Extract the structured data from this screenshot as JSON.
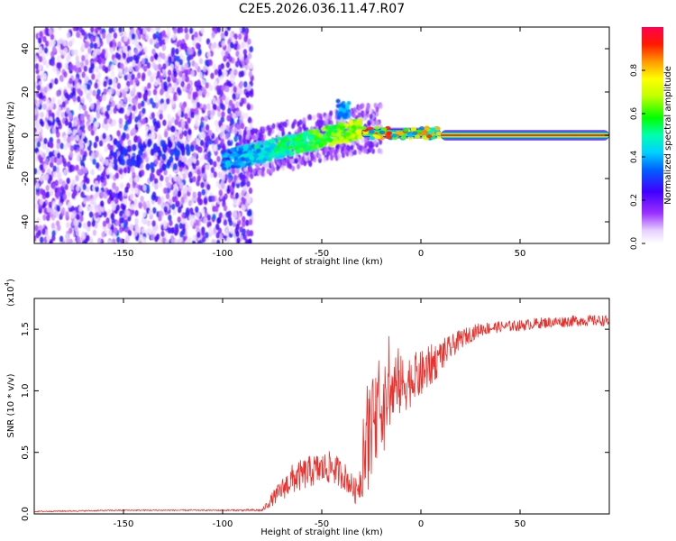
{
  "title": "C2E5.2026.036.11.47.R07",
  "chart_data": [
    {
      "type": "heatmap",
      "name": "spectrogram",
      "xlabel": "Height of straight line (km)",
      "ylabel": "Frequency (Hz)",
      "xlim": [
        -195,
        95
      ],
      "ylim": [
        -50,
        50
      ],
      "xticks": [
        -150,
        -100,
        -50,
        0,
        50
      ],
      "yticks": [
        -40,
        -20,
        0,
        20,
        40
      ],
      "xtick_labels": [
        "-150",
        "-100",
        "-50",
        "0",
        "50"
      ],
      "ytick_labels": [
        "-40",
        "-20",
        "0",
        "20",
        "40"
      ],
      "colorbar": {
        "label": "Normalized spectral amplitude",
        "range": [
          0,
          1
        ],
        "ticks": [
          0.0,
          0.2,
          0.4,
          0.6,
          0.8
        ],
        "tick_labels": [
          "0.0",
          "0.2",
          "0.4",
          "0.6",
          "0.8"
        ]
      },
      "features": [
        {
          "label": "noise",
          "x_range": [
            -195,
            -85
          ],
          "freq_range": [
            -50,
            50
          ],
          "amplitude": 0.1
        },
        {
          "label": "transition",
          "x_range": [
            -100,
            -30
          ],
          "freq_start": -12,
          "freq_end": 3,
          "amplitude": 0.4
        },
        {
          "label": "tone",
          "x_range": [
            -30,
            10
          ],
          "freq": 1,
          "amplitude": 0.9
        },
        {
          "label": "tone",
          "x_range": [
            10,
            95
          ],
          "freq": 0,
          "amplitude": 0.95
        }
      ]
    },
    {
      "type": "line",
      "name": "snr",
      "xlabel": "Height of straight line (km)",
      "ylabel": "SNR (10 * v/v)",
      "y_multiplier": "(x10",
      "y_multiplier_exp": "4",
      "y_multiplier_close": ")",
      "xlim": [
        -195,
        95
      ],
      "ylim": [
        0,
        1.75
      ],
      "xticks": [
        -150,
        -100,
        -50,
        0,
        50
      ],
      "yticks": [
        0.0,
        0.5,
        1.0,
        1.5
      ],
      "xtick_labels": [
        "-150",
        "-100",
        "-50",
        "0",
        "50"
      ],
      "ytick_labels": [
        "0.0",
        "0.5",
        "1.0",
        "1.5"
      ],
      "color": "#e8322e",
      "series": [
        {
          "name": "SNR",
          "x": [
            -195,
            -150,
            -100,
            -80,
            -75,
            -65,
            -55,
            -45,
            -38,
            -33,
            -30,
            -27,
            -25,
            -22,
            -18,
            -12,
            -6,
            0,
            6,
            10,
            15,
            20,
            25,
            30,
            40,
            50,
            60,
            70,
            80,
            90,
            95
          ],
          "y": [
            0.02,
            0.03,
            0.03,
            0.03,
            0.12,
            0.28,
            0.35,
            0.38,
            0.3,
            0.18,
            0.3,
            0.6,
            0.7,
            0.8,
            0.92,
            1.02,
            1.08,
            1.13,
            1.22,
            1.28,
            1.35,
            1.42,
            1.46,
            1.5,
            1.52,
            1.53,
            1.55,
            1.56,
            1.57,
            1.57,
            1.57
          ],
          "noise": [
            0.01,
            0.01,
            0.01,
            0.02,
            0.1,
            0.22,
            0.24,
            0.24,
            0.2,
            0.18,
            0.3,
            0.8,
            0.7,
            0.6,
            0.52,
            0.48,
            0.4,
            0.35,
            0.3,
            0.25,
            0.18,
            0.14,
            0.12,
            0.1,
            0.08,
            0.08,
            0.08,
            0.08,
            0.08,
            0.08,
            0.08
          ]
        }
      ]
    }
  ]
}
